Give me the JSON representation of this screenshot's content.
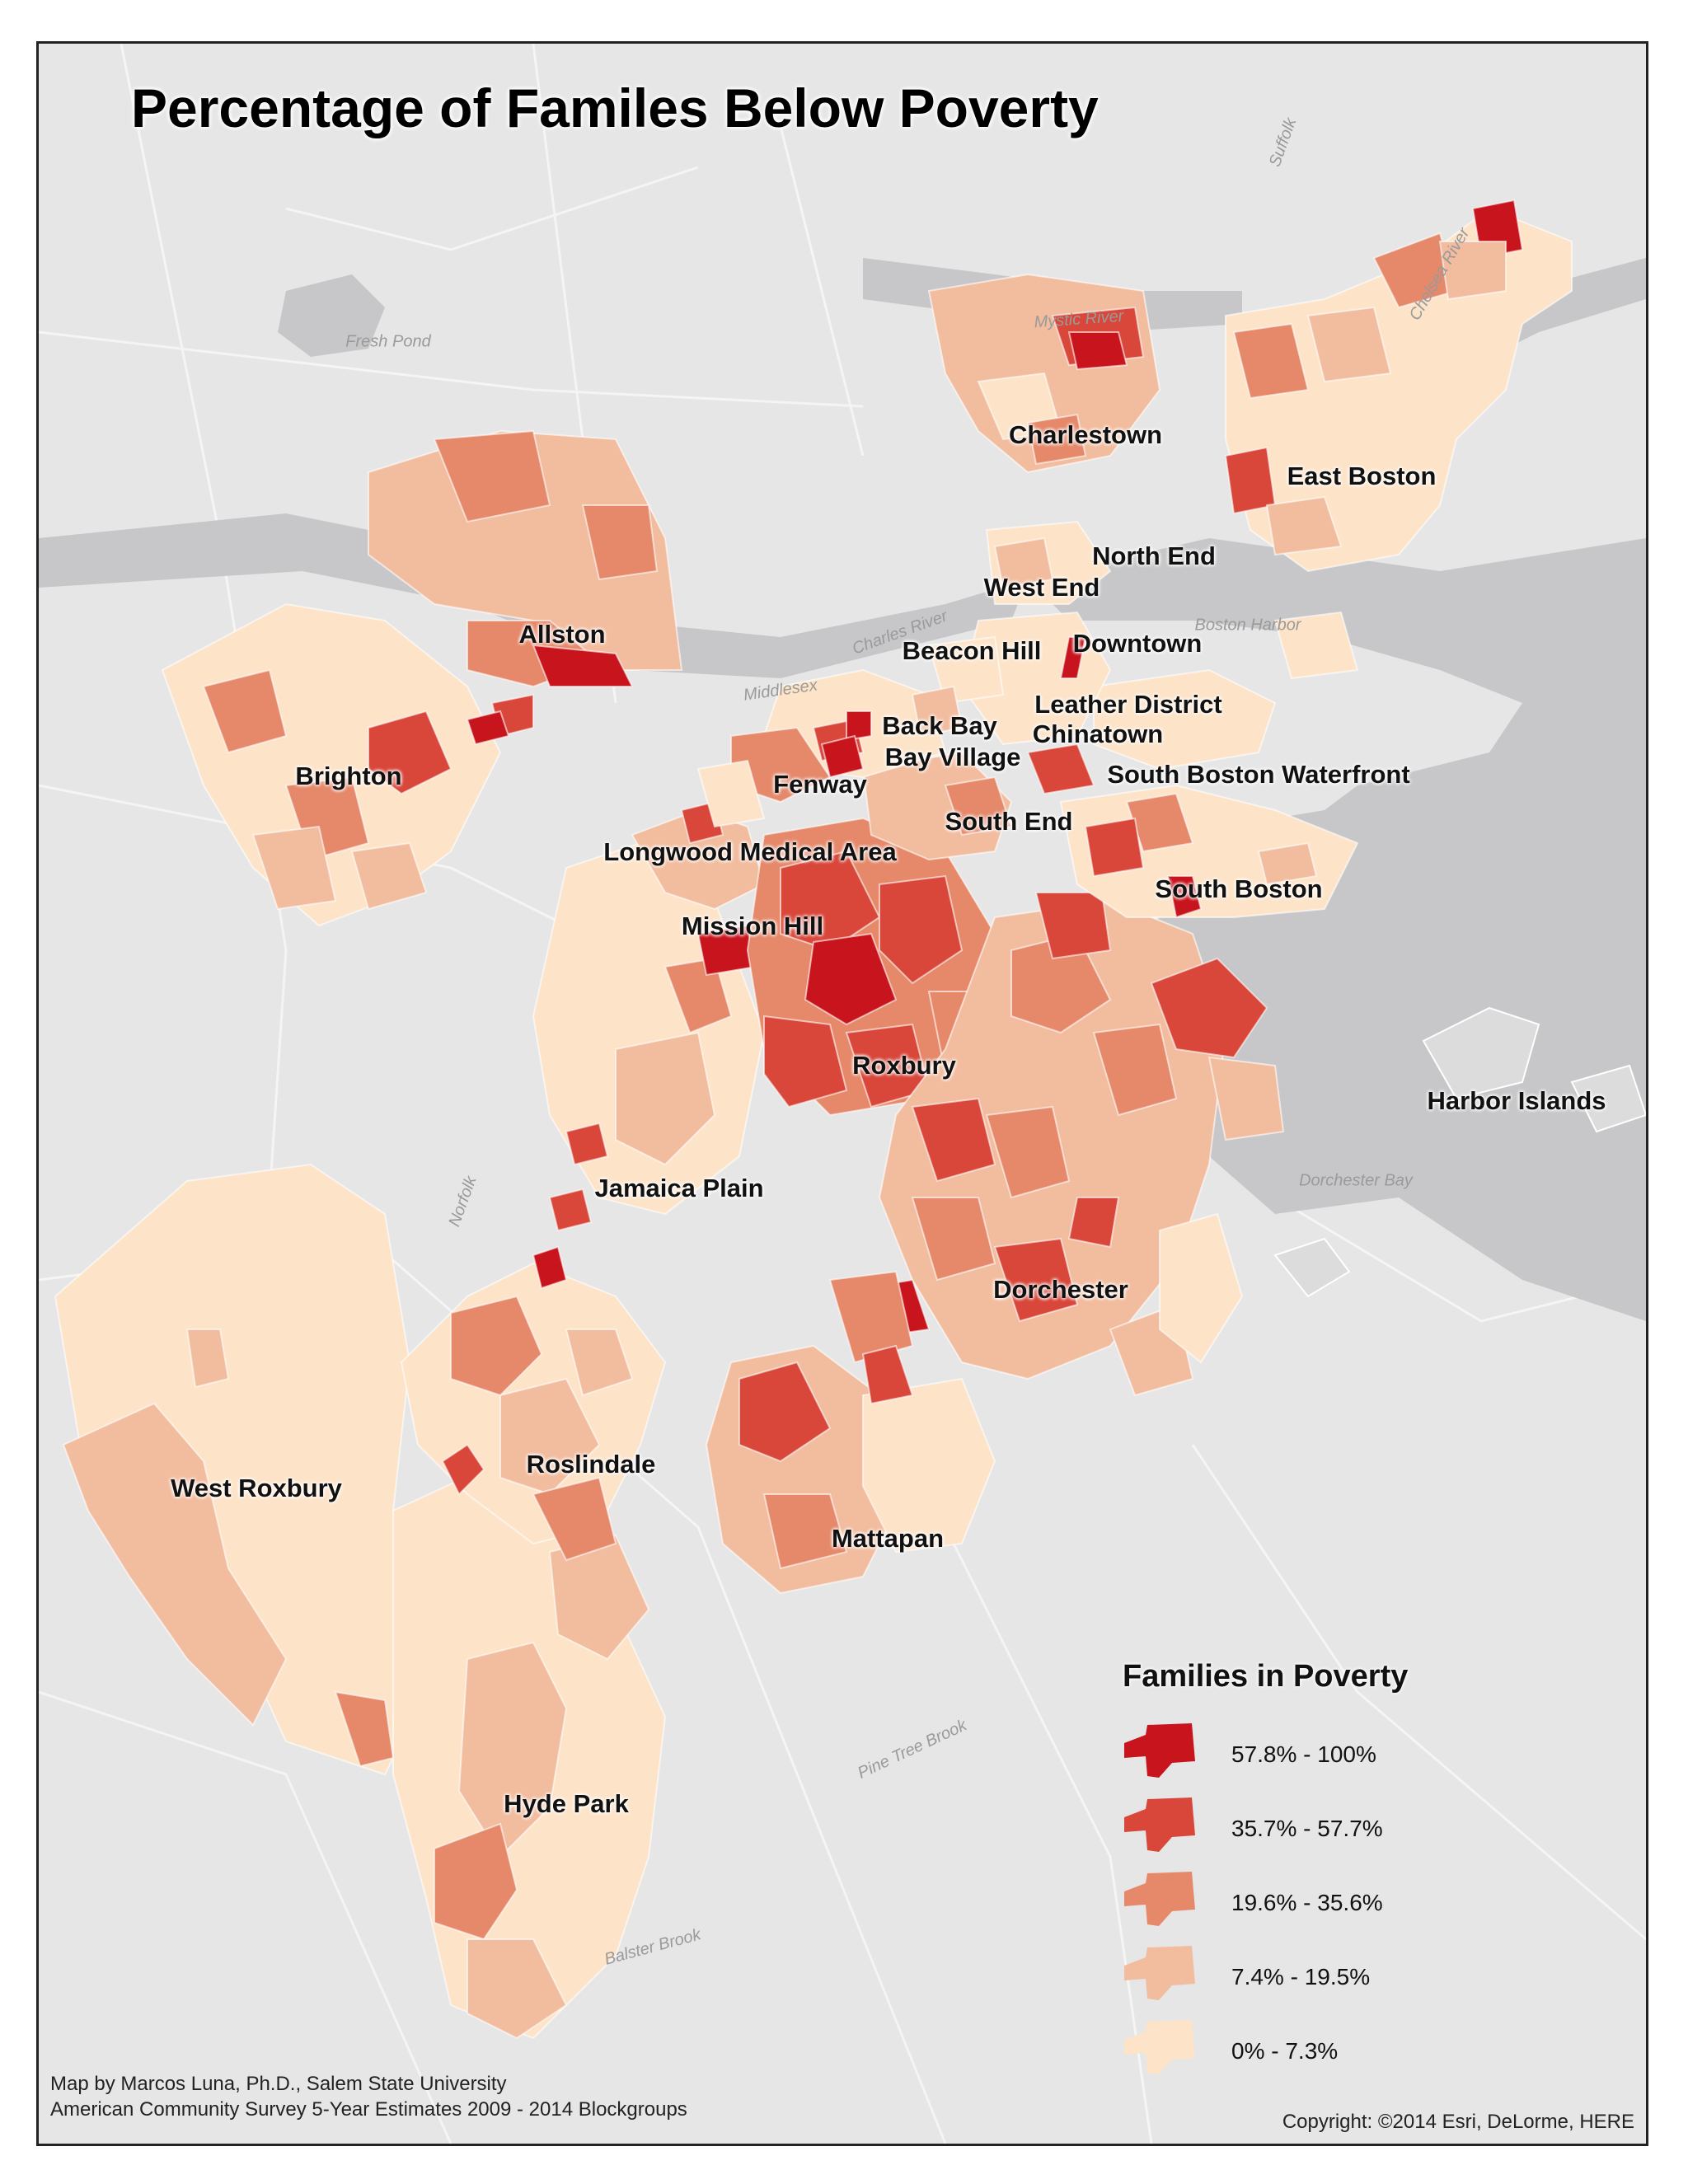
{
  "title": "Percentage of Familes Below Poverty",
  "neighborhoods": [
    {
      "name": "Charlestown"
    },
    {
      "name": "East Boston"
    },
    {
      "name": "North End"
    },
    {
      "name": "West End"
    },
    {
      "name": "Allston"
    },
    {
      "name": "Beacon Hill"
    },
    {
      "name": "Downtown"
    },
    {
      "name": "Leather District"
    },
    {
      "name": "Chinatown"
    },
    {
      "name": "Back Bay"
    },
    {
      "name": "Bay Village"
    },
    {
      "name": "Brighton"
    },
    {
      "name": "Fenway"
    },
    {
      "name": "South Boston Waterfront"
    },
    {
      "name": "South End"
    },
    {
      "name": "Longwood Medical Area"
    },
    {
      "name": "South Boston"
    },
    {
      "name": "Mission Hill"
    },
    {
      "name": "Roxbury"
    },
    {
      "name": "Harbor Islands"
    },
    {
      "name": "Jamaica Plain"
    },
    {
      "name": "Dorchester"
    },
    {
      "name": "Roslindale"
    },
    {
      "name": "West Roxbury"
    },
    {
      "name": "Mattapan"
    },
    {
      "name": "Hyde Park"
    }
  ],
  "basemap_labels": [
    {
      "text": "Fresh Pond"
    },
    {
      "text": "Mystic River"
    },
    {
      "text": "Boston Harbor"
    },
    {
      "text": "Dorchester Bay"
    },
    {
      "text": "Middlesex"
    },
    {
      "text": "Suffolk"
    },
    {
      "text": "Norfolk"
    },
    {
      "text": "Charles River"
    },
    {
      "text": "Chelsea River"
    },
    {
      "text": "Pine Tree Brook"
    },
    {
      "text": "Balster Brook"
    }
  ],
  "legend": {
    "title": "Families in Poverty",
    "classes": [
      {
        "label": "57.8% - 100%",
        "color": "#c8141c"
      },
      {
        "label": "35.7% - 57.7%",
        "color": "#d9473a"
      },
      {
        "label": "19.6% - 35.6%",
        "color": "#e6896a"
      },
      {
        "label": "7.4% - 19.5%",
        "color": "#f2bc9e"
      },
      {
        "label": "0% - 7.3%",
        "color": "#fde3c8"
      }
    ]
  },
  "credits": {
    "author": "Map by Marcos Luna, Ph.D., Salem State University",
    "source": "American Community Survey 5-Year Estimates 2009 - 2014 Blockgroups",
    "copyright": "Copyright: ©2014 Esri, DeLorme, HERE"
  },
  "colors": {
    "water": "#c7c7c9",
    "land": "#e6e6e6",
    "class_1": "#fde3c8",
    "class_2": "#f2bc9e",
    "class_3": "#e6896a",
    "class_4": "#d9473a",
    "class_5": "#c8141c"
  }
}
